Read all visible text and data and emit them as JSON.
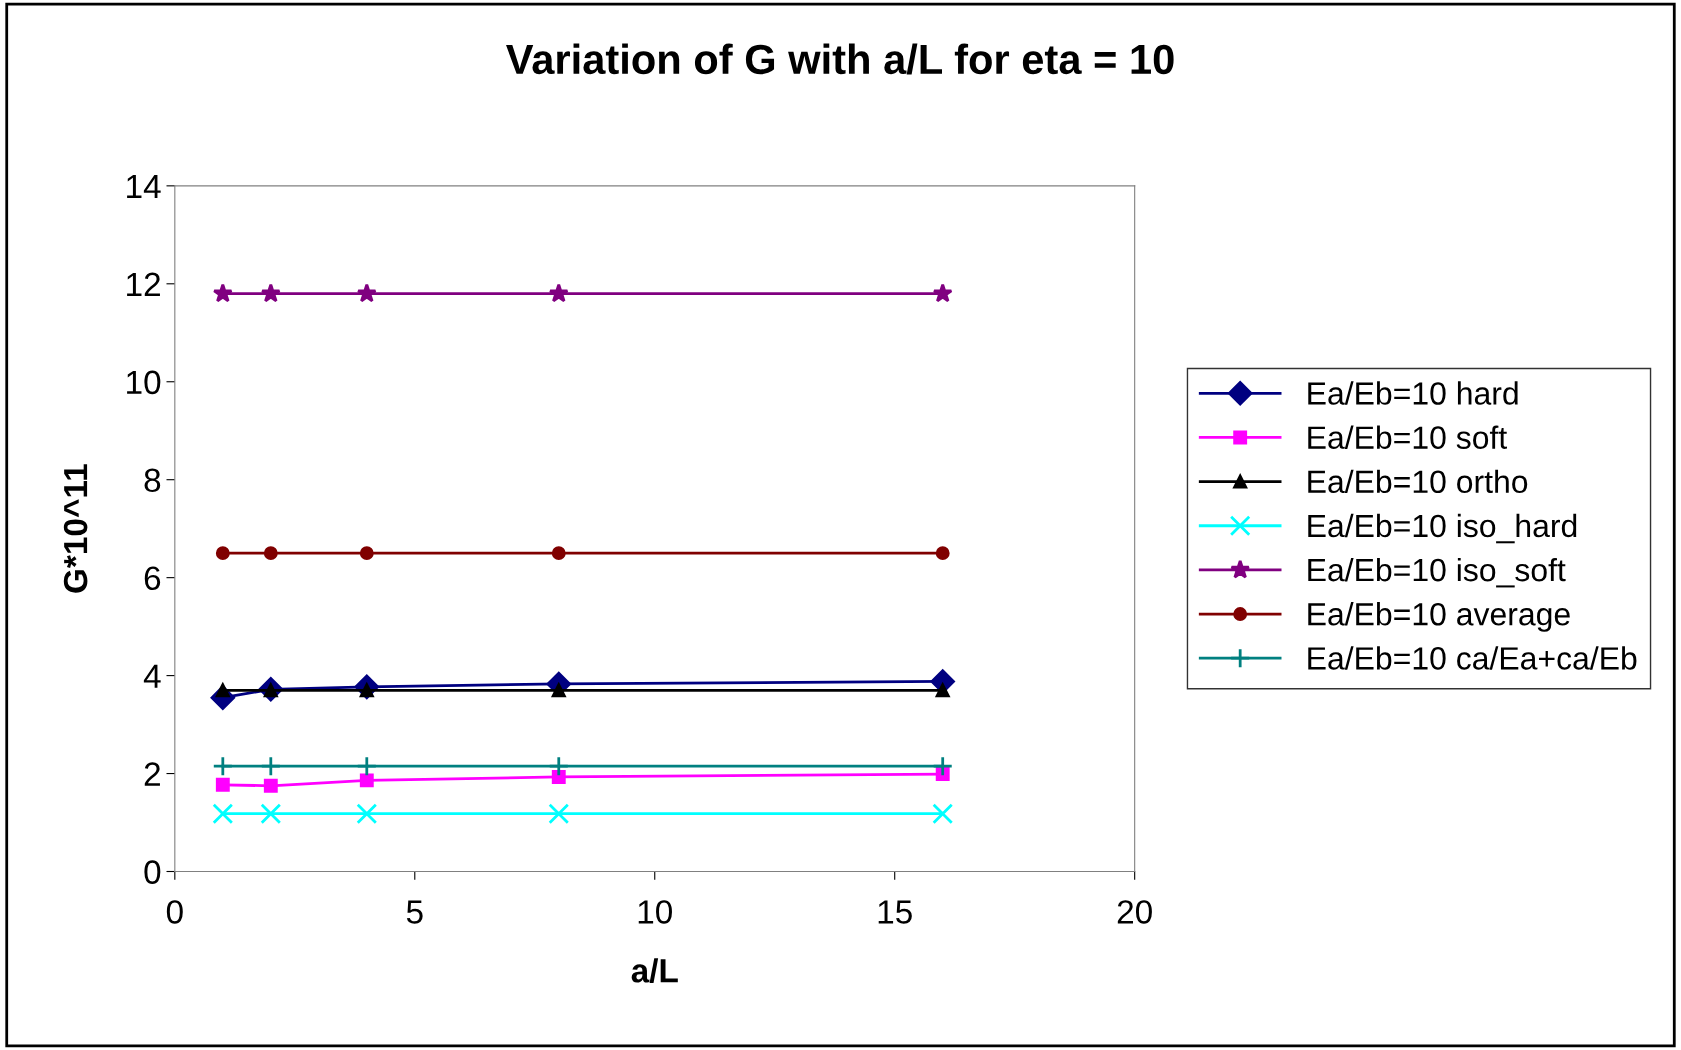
{
  "chart_data": {
    "type": "line",
    "title": "Variation of G with a/L for eta = 10",
    "xlabel": "a/L",
    "ylabel": "G*10^11",
    "x": [
      1,
      2,
      4,
      8,
      16
    ],
    "xlim": [
      0,
      20
    ],
    "xticks": [
      0,
      5,
      10,
      15,
      20
    ],
    "ylim": [
      0,
      14
    ],
    "yticks": [
      0,
      2,
      4,
      6,
      8,
      10,
      12,
      14
    ],
    "grid": false,
    "legend": "right",
    "series": [
      {
        "name": "Ea/Eb=10 hard",
        "color": "#000080",
        "marker": "diamond",
        "values": [
          3.55,
          3.72,
          3.77,
          3.83,
          3.88
        ]
      },
      {
        "name": "Ea/Eb=10 soft",
        "color": "#ff00ff",
        "marker": "square",
        "values": [
          1.77,
          1.75,
          1.86,
          1.93,
          1.99
        ]
      },
      {
        "name": "Ea/Eb=10 ortho",
        "color": "#000000",
        "marker": "triangle",
        "values": [
          3.7,
          3.7,
          3.7,
          3.7,
          3.7
        ]
      },
      {
        "name": "Ea/Eb=10 iso_hard",
        "color": "#00ffff",
        "marker": "cross",
        "values": [
          1.18,
          1.18,
          1.18,
          1.18,
          1.18
        ]
      },
      {
        "name": "Ea/Eb=10 iso_soft",
        "color": "#800080",
        "marker": "star",
        "values": [
          11.8,
          11.8,
          11.8,
          11.8,
          11.8
        ]
      },
      {
        "name": "Ea/Eb=10 average",
        "color": "#800000",
        "marker": "circle",
        "values": [
          6.5,
          6.5,
          6.5,
          6.5,
          6.5
        ]
      },
      {
        "name": "Ea/Eb=10 ca/Ea+ca/Eb",
        "color": "#008080",
        "marker": "plus",
        "values": [
          2.15,
          2.15,
          2.15,
          2.15,
          2.15
        ]
      }
    ]
  }
}
